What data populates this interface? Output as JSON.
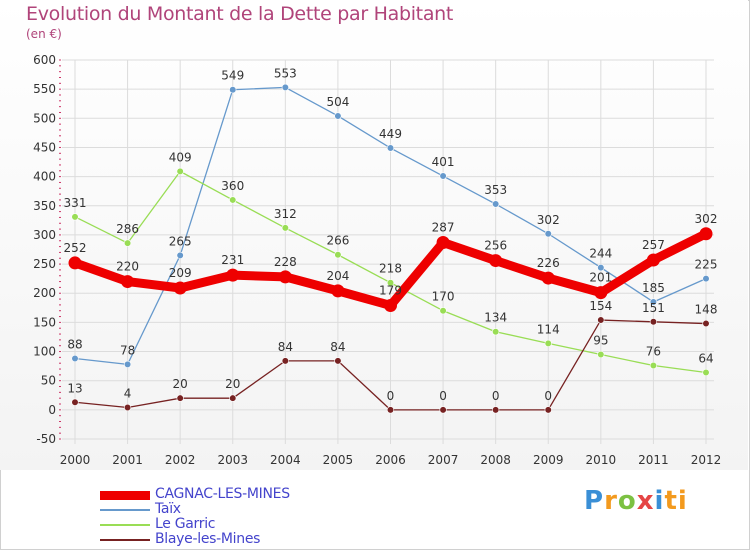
{
  "title": "Evolution du Montant de la Dette par Habitant",
  "subtitle": "(en €)",
  "logo": "Proxiti",
  "logo_letters": [
    "P",
    "r",
    "o",
    "x",
    "i",
    "ti"
  ],
  "chart_data": {
    "type": "line",
    "title": "Evolution du Montant de la Dette par Habitant",
    "ylabel": "(en €)",
    "xlabel": "",
    "ylim": [
      -50,
      600
    ],
    "ytick_step": 50,
    "yticks": [
      "-50",
      "0",
      "50",
      "100",
      "150",
      "200",
      "250",
      "300",
      "350",
      "400",
      "450",
      "500",
      "550",
      "600"
    ],
    "categories": [
      "2000",
      "2001",
      "2002",
      "2003",
      "2004",
      "2005",
      "2006",
      "2007",
      "2008",
      "2009",
      "2010",
      "2011",
      "2012"
    ],
    "legend_position": "bottom-left",
    "series": [
      {
        "name": "CAGNAC-LES-MINES",
        "color": "#ee0000",
        "values": [
          252,
          220,
          209,
          231,
          228,
          204,
          179,
          287,
          256,
          226,
          201,
          257,
          302
        ]
      },
      {
        "name": "Taïx",
        "color": "#6699cc",
        "values": [
          88,
          78,
          265,
          549,
          553,
          504,
          449,
          401,
          353,
          302,
          244,
          185,
          225
        ]
      },
      {
        "name": "Le Garric",
        "color": "#99dd55",
        "values": [
          331,
          286,
          409,
          360,
          312,
          266,
          218,
          170,
          134,
          114,
          95,
          76,
          64
        ]
      },
      {
        "name": "Blaye-les-Mines",
        "color": "#772222",
        "values": [
          13,
          4,
          20,
          20,
          84,
          84,
          0,
          0,
          0,
          0,
          154,
          151,
          148
        ]
      }
    ]
  }
}
